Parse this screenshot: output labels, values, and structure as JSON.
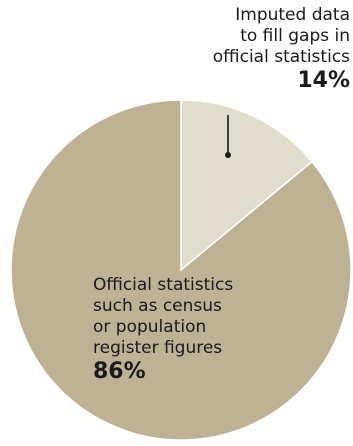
{
  "chart_data": {
    "type": "pie",
    "title": "",
    "slices": [
      {
        "label_lines": [
          "Imputed data",
          "to fill gaps in",
          "official statistics"
        ],
        "value": 14,
        "value_label": "14%",
        "color": "#e0ddcd"
      },
      {
        "label_lines": [
          "Official statistics",
          "such as census",
          "or population",
          "register figures"
        ],
        "value": 86,
        "value_label": "86%",
        "color": "#bdb294"
      }
    ]
  }
}
